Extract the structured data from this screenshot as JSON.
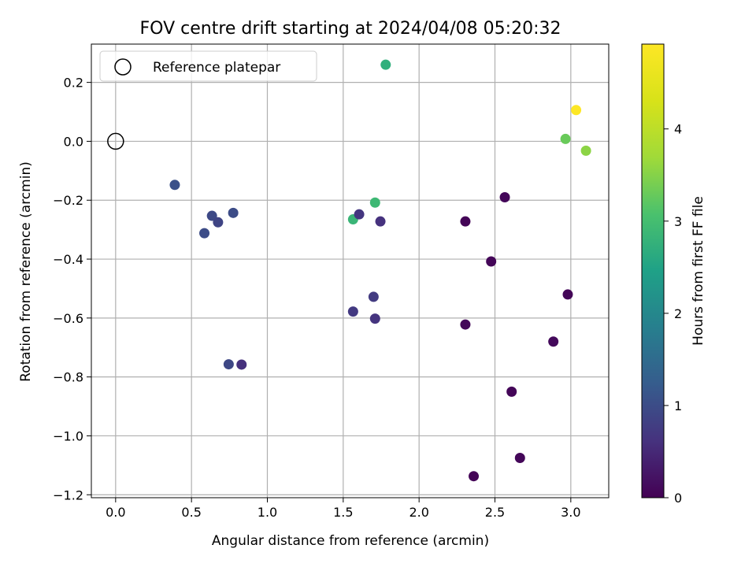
{
  "chart_data": {
    "type": "scatter",
    "title": "FOV centre drift starting at 2024/04/08 05:20:32",
    "xlabel": "Angular distance from reference (arcmin)",
    "ylabel": "Rotation from reference (arcmin)",
    "xlim": [
      -0.16,
      3.25
    ],
    "ylim": [
      -1.21,
      0.33
    ],
    "xticks": [
      0.0,
      0.5,
      1.0,
      1.5,
      2.0,
      2.5,
      3.0
    ],
    "xtick_labels": [
      "0.0",
      "0.5",
      "1.0",
      "1.5",
      "2.0",
      "2.5",
      "3.0"
    ],
    "yticks": [
      0.2,
      0.0,
      -0.2,
      -0.4,
      -0.6,
      -0.8,
      -1.0,
      -1.2
    ],
    "ytick_labels": [
      "0.2",
      "0.0",
      "−0.2",
      "−0.4",
      "−0.6",
      "−0.8",
      "−1.0",
      "−1.2"
    ],
    "grid": true,
    "legend": {
      "placement": "top-left",
      "entries": [
        "Reference platepar"
      ]
    },
    "reference_point": {
      "x": 0.0,
      "y": 0.0,
      "marker": "open-circle"
    },
    "colorbar": {
      "label": "Hours from first FF file",
      "colormap": "viridis",
      "range": [
        0,
        4.92
      ],
      "ticks": [
        0,
        1,
        2,
        3,
        4
      ],
      "tick_labels": [
        "0",
        "1",
        "2",
        "3",
        "4"
      ]
    },
    "points": [
      {
        "x": 0.39,
        "y": -0.148,
        "hours": 1.05
      },
      {
        "x": 0.585,
        "y": -0.312,
        "hours": 1.0
      },
      {
        "x": 0.635,
        "y": -0.253,
        "hours": 0.95
      },
      {
        "x": 0.675,
        "y": -0.275,
        "hours": 0.88
      },
      {
        "x": 0.775,
        "y": -0.243,
        "hours": 1.0
      },
      {
        "x": 0.745,
        "y": -0.757,
        "hours": 0.92
      },
      {
        "x": 0.83,
        "y": -0.758,
        "hours": 0.6
      },
      {
        "x": 1.565,
        "y": -0.578,
        "hours": 0.72
      },
      {
        "x": 1.565,
        "y": -0.265,
        "hours": 2.85
      },
      {
        "x": 1.605,
        "y": -0.248,
        "hours": 0.68
      },
      {
        "x": 1.7,
        "y": -0.528,
        "hours": 0.74
      },
      {
        "x": 1.71,
        "y": -0.602,
        "hours": 0.65
      },
      {
        "x": 1.71,
        "y": -0.208,
        "hours": 2.9
      },
      {
        "x": 1.745,
        "y": -0.272,
        "hours": 0.62
      },
      {
        "x": 1.78,
        "y": 0.26,
        "hours": 2.72
      },
      {
        "x": 2.305,
        "y": -0.272,
        "hours": 0.05
      },
      {
        "x": 2.305,
        "y": -0.622,
        "hours": 0.08
      },
      {
        "x": 2.36,
        "y": -1.137,
        "hours": 0.04
      },
      {
        "x": 2.475,
        "y": -0.408,
        "hours": 0.06
      },
      {
        "x": 2.565,
        "y": -0.19,
        "hours": 0.08
      },
      {
        "x": 2.61,
        "y": -0.85,
        "hours": 0.06
      },
      {
        "x": 2.665,
        "y": -1.075,
        "hours": 0.07
      },
      {
        "x": 2.885,
        "y": -0.68,
        "hours": 0.1
      },
      {
        "x": 2.965,
        "y": 0.008,
        "hours": 3.3
      },
      {
        "x": 2.98,
        "y": -0.52,
        "hours": 0.06
      },
      {
        "x": 3.035,
        "y": 0.106,
        "hours": 4.92
      },
      {
        "x": 3.1,
        "y": -0.032,
        "hours": 3.55
      }
    ]
  }
}
